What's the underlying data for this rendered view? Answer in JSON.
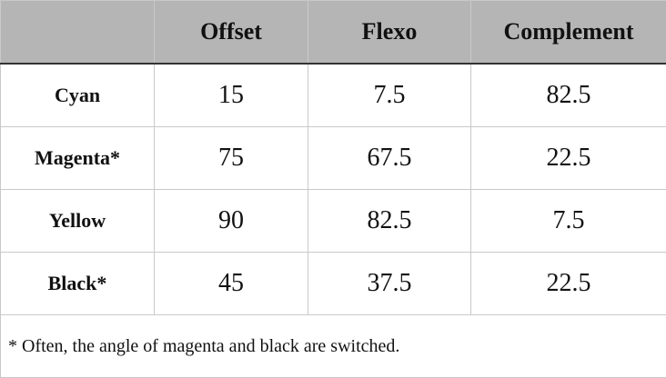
{
  "table": {
    "columns": [
      "Offset",
      "Flexo",
      "Complement"
    ],
    "rows": [
      {
        "label": "Cyan",
        "values": [
          15,
          7.5,
          82.5
        ]
      },
      {
        "label": "Magenta*",
        "values": [
          75,
          67.5,
          22.5
        ]
      },
      {
        "label": "Yellow",
        "values": [
          90,
          82.5,
          7.5
        ]
      },
      {
        "label": "Black*",
        "values": [
          45,
          37.5,
          22.5
        ]
      }
    ],
    "footnote": "* Often, the angle of magenta and black are switched."
  }
}
